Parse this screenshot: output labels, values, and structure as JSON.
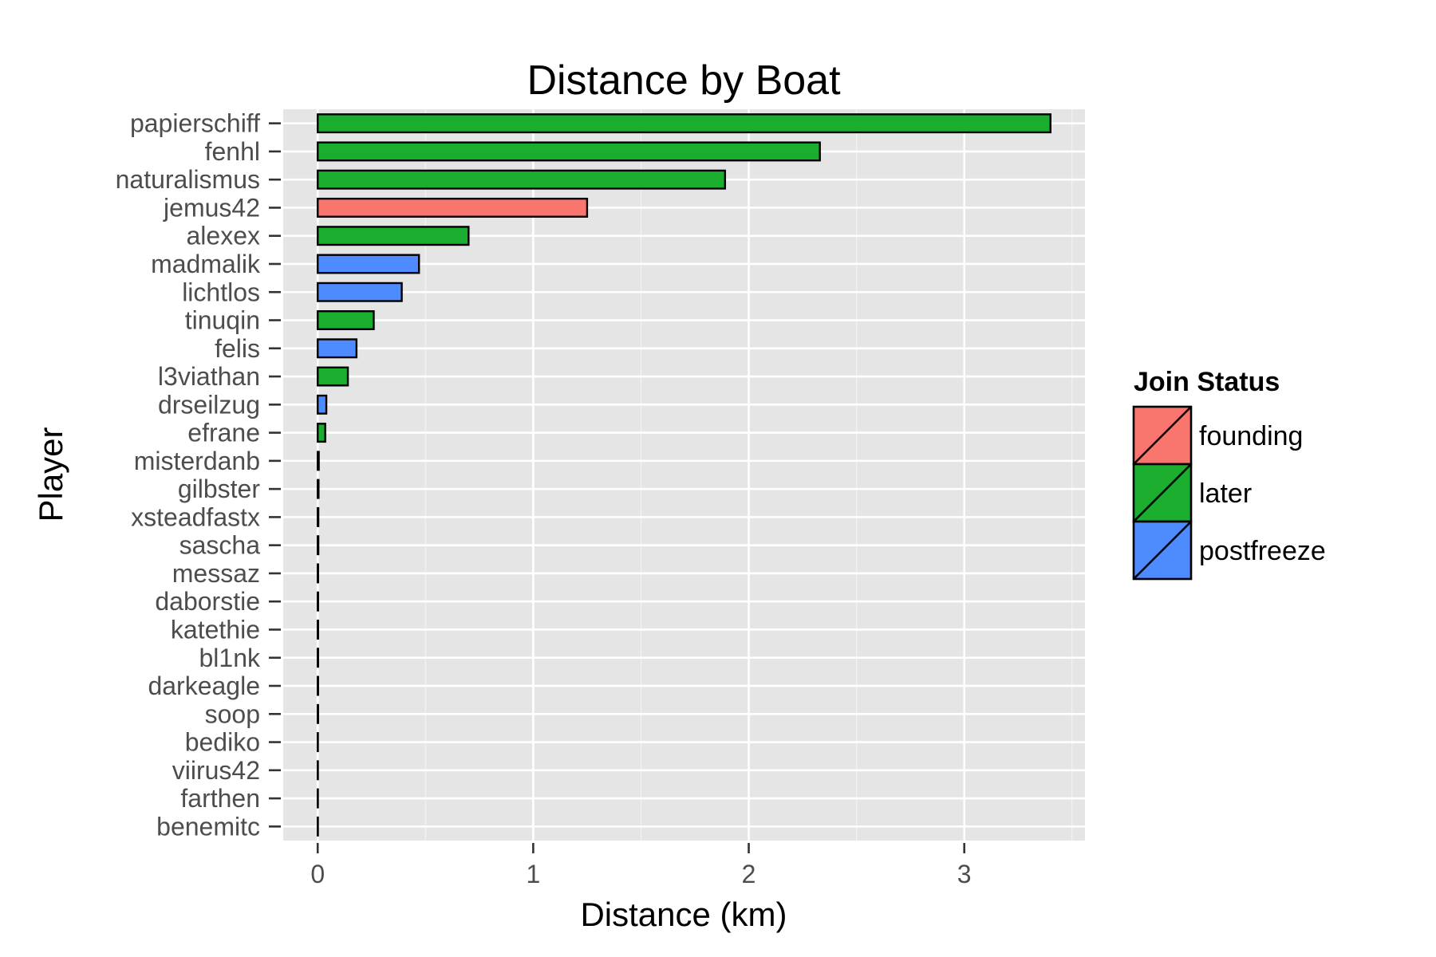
{
  "chart_data": {
    "type": "bar",
    "orientation": "horizontal",
    "title": "Distance by Boat",
    "xlabel": "Distance (km)",
    "ylabel": "Player",
    "xlim": [
      -0.16,
      3.56
    ],
    "x_ticks": [
      0,
      1,
      2,
      3
    ],
    "x_minor_ticks": [
      0.5,
      1.5,
      2.5,
      3.5
    ],
    "grid": true,
    "categories": [
      "papierschiff",
      "fenhl",
      "naturalismus",
      "jemus42",
      "alexex",
      "madmalik",
      "lichtlos",
      "tinuqin",
      "felis",
      "l3viathan",
      "drseilzug",
      "efrane",
      "misterdanb",
      "gilbster",
      "xsteadfastx",
      "sascha",
      "messaz",
      "daborstie",
      "katethie",
      "bl1nk",
      "darkeagle",
      "soop",
      "bediko",
      "viirus42",
      "farthen",
      "benemitc"
    ],
    "values": [
      3.4,
      2.33,
      1.89,
      1.25,
      0.7,
      0.47,
      0.39,
      0.26,
      0.18,
      0.14,
      0.04,
      0.035,
      0.005,
      0.004,
      0.003,
      0.003,
      0.002,
      0.002,
      0.002,
      0.002,
      0.002,
      0.002,
      0.001,
      0.001,
      0.001,
      0.001
    ],
    "groups": [
      "later",
      "later",
      "later",
      "founding",
      "later",
      "postfreeze",
      "postfreeze",
      "later",
      "postfreeze",
      "later",
      "postfreeze",
      "later",
      "later",
      "later",
      "later",
      "later",
      "later",
      "later",
      "later",
      "later",
      "later",
      "later",
      "later",
      "later",
      "later",
      "later"
    ],
    "legend": {
      "title": "Join Status",
      "position": "right",
      "items": [
        {
          "name": "founding",
          "color": "#F8766D"
        },
        {
          "name": "later",
          "color": "#1BAE2E"
        },
        {
          "name": "postfreeze",
          "color": "#4E8BFF"
        }
      ]
    },
    "colors": {
      "panel": "#E5E5E5",
      "grid": "#FFFFFF",
      "bar_outline": "#000000"
    }
  }
}
